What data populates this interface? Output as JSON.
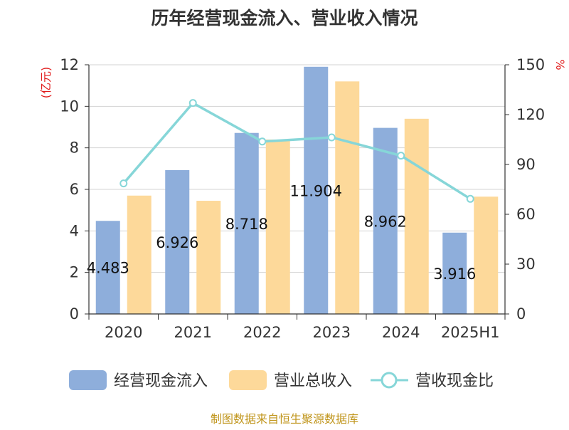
{
  "chart_data": {
    "type": "bar",
    "title": "历年经营现金流入、营业收入情况",
    "categories": [
      "2020",
      "2021",
      "2022",
      "2023",
      "2024",
      "2025H1"
    ],
    "left_axis": {
      "unit": "(亿元)",
      "ylim": [
        0,
        12
      ],
      "ticks": [
        "0",
        "2",
        "4",
        "6",
        "8",
        "10",
        "12"
      ]
    },
    "right_axis": {
      "unit": "%",
      "ylim": [
        0,
        150
      ],
      "ticks": [
        "0",
        "30",
        "60",
        "90",
        "120",
        "150"
      ]
    },
    "grid": true,
    "legend_position": "bottom",
    "series": [
      {
        "name": "经营现金流入",
        "type": "bar",
        "axis": "left",
        "color": "#8eaedb",
        "values": [
          4.483,
          6.926,
          8.718,
          11.904,
          8.962,
          3.916
        ],
        "labels": [
          "4.483",
          "6.926",
          "8.718",
          "11.904",
          "8.962",
          "3.916"
        ]
      },
      {
        "name": "营业总收入",
        "type": "bar",
        "axis": "left",
        "color": "#fdd99a",
        "values": [
          5.7,
          5.45,
          8.4,
          11.2,
          9.4,
          5.65
        ]
      },
      {
        "name": "营收现金比",
        "type": "line",
        "axis": "right",
        "color": "#86d6d8",
        "values": [
          78.6,
          127.0,
          103.8,
          106.3,
          95.3,
          69.3
        ]
      }
    ]
  },
  "source": "制图数据来自恒生聚源数据库"
}
